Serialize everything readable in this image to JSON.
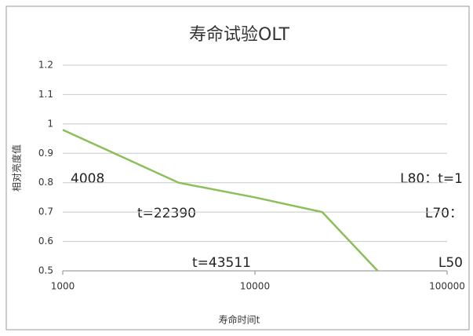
{
  "chart_data": {
    "type": "line",
    "title": "寿命试验OLT",
    "x_label": "寿命时间t",
    "y_label": "相对亮度值",
    "log_x": true,
    "x": [
      1000,
      4008,
      10000,
      22390,
      43511
    ],
    "series": [
      {
        "name": "OLT",
        "color": "#8bbf5a",
        "values": [
          0.98,
          0.8,
          0.75,
          0.7,
          0.5
        ]
      }
    ],
    "xlim": [
      1000,
      100000
    ],
    "xticks": [
      1000,
      10000,
      100000
    ],
    "ylim": [
      0.5,
      1.2
    ],
    "yticks": [
      0.5,
      0.6,
      0.7,
      0.8,
      0.9,
      1,
      1.1,
      1.2
    ],
    "grid": true,
    "annotations": [
      "4008",
      "t=22390",
      "t=43511",
      "L80：t=1",
      "L70：",
      "L50"
    ]
  }
}
